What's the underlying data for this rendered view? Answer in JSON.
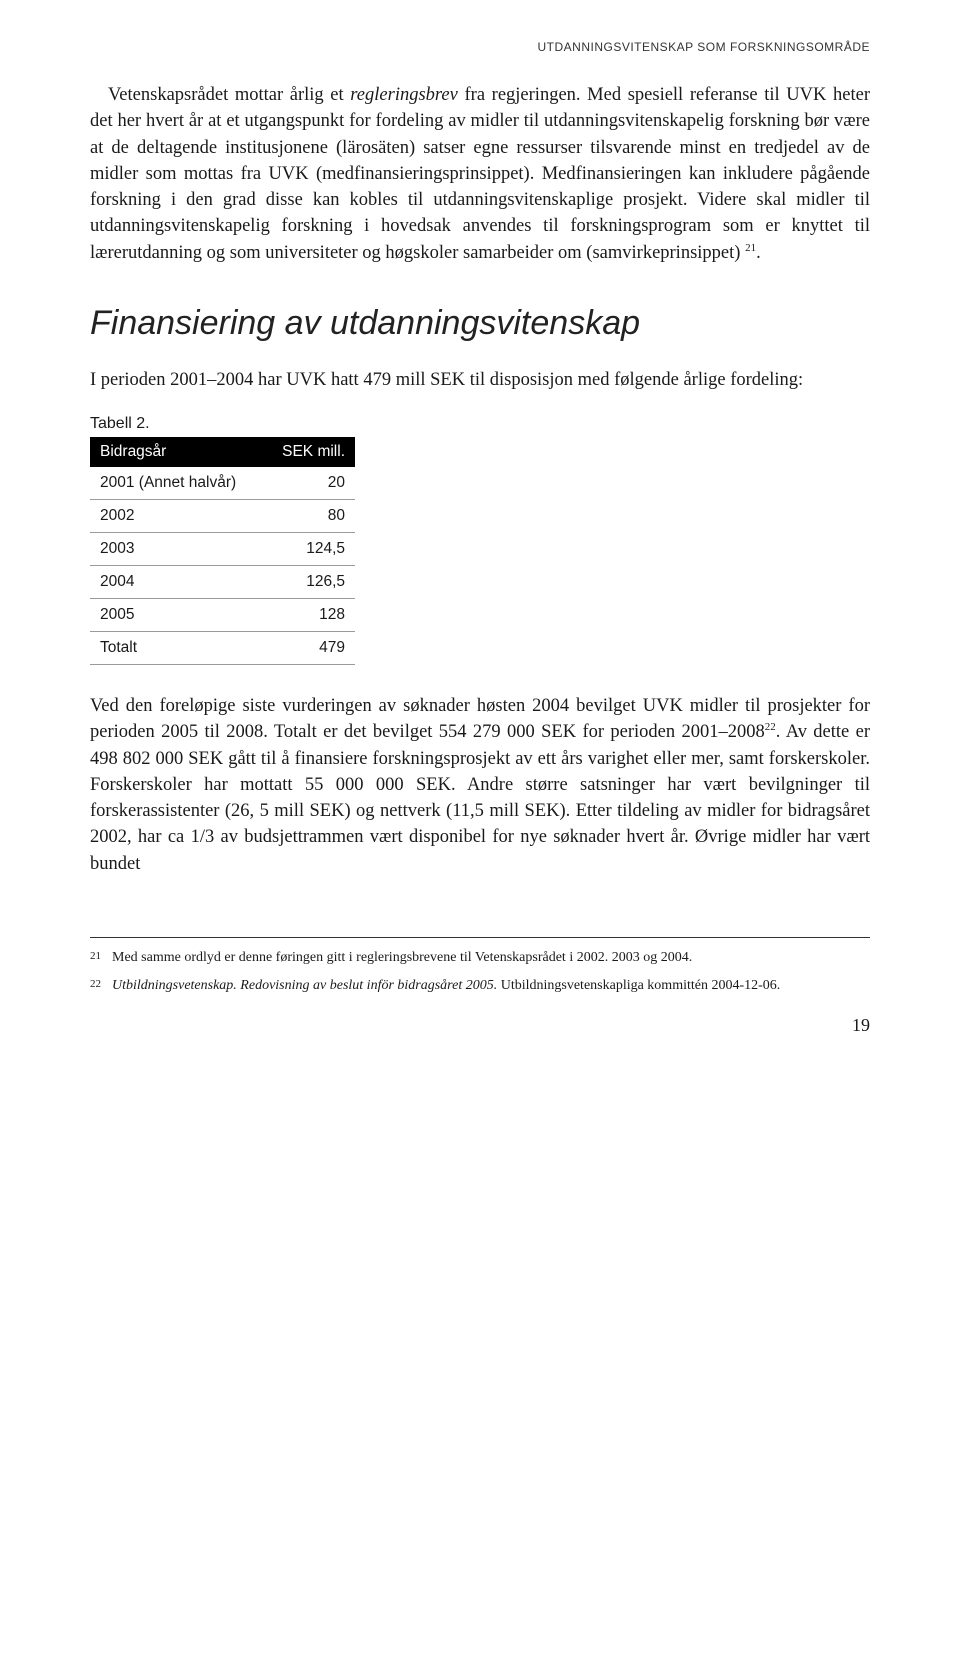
{
  "header": "UTDANNINGSVITENSKAP SOM FORSKNINGSOMRÅDE",
  "para1_lead": "Vetenskapsrådet mottar årlig et ",
  "para1_italic": "regleringsbrev",
  "para1_rest": " fra regjeringen. Med spesiell referanse til UVK heter det her hvert år at et utgangspunkt for fordeling av midler til utdanningsvitenskapelig forskning bør være at de deltagende institusjonene (lärosäten) satser egne ressurser tilsvarende minst en tredjedel av de midler som mottas fra UVK (medfinansieringsprinsippet). Medfinansieringen kan inkludere pågående forskning i den grad disse kan kobles til utdanningsvitenskaplige prosjekt. Videre skal midler til utdanningsvitenskapelig forskning i hovedsak anvendes til forskningsprogram som er knyttet til lærerutdanning og som universiteter og høgskoler samarbeider om (samvirkeprinsippet) ",
  "para1_sup": "21",
  "para1_end": ".",
  "section_heading": "Finansiering av utdanningsvitenskap",
  "intro": "I perioden 2001–2004 har UVK hatt 479 mill SEK til disposisjon med følgende årlige fordeling:",
  "table": {
    "label": "Tabell 2.",
    "columns": [
      "Bidragsår",
      "SEK mill."
    ],
    "rows": [
      [
        "2001 (Annet halvår)",
        "20"
      ],
      [
        "2002",
        "80"
      ],
      [
        "2003",
        "124,5"
      ],
      [
        "2004",
        "126,5"
      ],
      [
        "2005",
        "128"
      ],
      [
        "Totalt",
        "479"
      ]
    ]
  },
  "para2_a": "Ved den foreløpige siste vurderingen av søknader høsten 2004 bevilget UVK midler til prosjekter for perioden 2005 til 2008. Totalt er det bevilget 554 279 000 SEK for perioden 2001–2008",
  "para2_sup": "22",
  "para2_b": ". Av dette er 498 802 000 SEK gått til å finansiere forskningsprosjekt av ett års varighet eller mer, samt forskerskoler. Forskerskoler har mottatt 55 000 000 SEK. Andre større satsninger har vært bevilgninger til forskerassistenter (26, 5 mill SEK) og nettverk (11,5 mill SEK). Etter tildeling av midler for bidragsåret 2002, har ca 1/3 av budsjettrammen vært disponibel for nye søknader hvert år. Øvrige midler har vært bundet",
  "footnotes": [
    {
      "num": "21",
      "text": "Med samme ordlyd er denne føringen gitt i regleringsbrevene til Vetenskapsrådet i 2002. 2003 og 2004."
    },
    {
      "num": "22",
      "text_italic": "Utbildningsvetenskap. Redovisning av beslut inför bidragsåret 2005.",
      "text_rest": " Utbildningsvetenskapliga kommittén 2004-12-06."
    }
  ],
  "page_number": "19"
}
